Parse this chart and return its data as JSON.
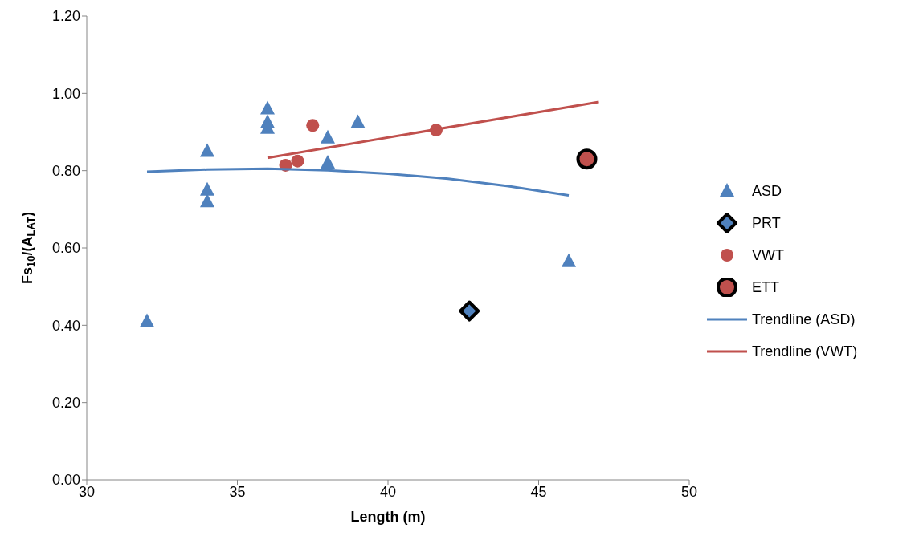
{
  "chart_data": {
    "type": "scatter",
    "xlabel": "Length (m)",
    "ylabel": "Fs$_{10}$/(A$_{LAT}$)",
    "xlim": [
      30,
      50
    ],
    "xticks": [
      30,
      35,
      40,
      45,
      50
    ],
    "ylim": [
      0,
      1.2
    ],
    "yticks": [
      {
        "value": 0,
        "label": "0.00"
      },
      {
        "value": 0.2,
        "label": "0.20"
      },
      {
        "value": 0.4,
        "label": "0.40"
      },
      {
        "value": 0.6,
        "label": "0.60"
      },
      {
        "value": 0.8,
        "label": "0.80"
      },
      {
        "value": 1.0,
        "label": "1.00"
      },
      {
        "value": 1.2,
        "label": "1.20"
      }
    ],
    "grid": false,
    "legend": "right",
    "series": [
      {
        "name": "ASD",
        "type": "scatter",
        "marker": "triangle",
        "color": "#4f81bd",
        "x": [
          32,
          34,
          34,
          34,
          36,
          36,
          36,
          38,
          38,
          39,
          46
        ],
        "values": [
          0.41,
          0.85,
          0.75,
          0.72,
          0.96,
          0.925,
          0.91,
          0.885,
          0.82,
          0.925,
          0.565
        ]
      },
      {
        "name": "PRT",
        "type": "scatter",
        "marker": "diamond",
        "color": "#4f81bd",
        "x": [
          42.7
        ],
        "values": [
          0.437
        ]
      },
      {
        "name": "VWT",
        "type": "scatter",
        "marker": "circle",
        "color": "#c0504d",
        "x": [
          36.6,
          37,
          37.5,
          41.6
        ],
        "values": [
          0.814,
          0.825,
          0.917,
          0.905
        ]
      },
      {
        "name": "ETT",
        "type": "scatter",
        "marker": "circle",
        "color": "#c0504d",
        "x": [
          46.6
        ],
        "values": [
          0.83
        ]
      },
      {
        "name": "Trendline (ASD)",
        "type": "line",
        "marker": "none",
        "color": "#4f81bd",
        "x": [
          32,
          34,
          36,
          38,
          40,
          42,
          44,
          46
        ],
        "values": [
          0.797,
          0.803,
          0.805,
          0.801,
          0.792,
          0.779,
          0.76,
          0.736
        ]
      },
      {
        "name": "Trendline (VWT)",
        "type": "line",
        "marker": "none",
        "color": "#c0504d",
        "x": [
          36,
          47
        ],
        "values": [
          0.833,
          0.978
        ]
      }
    ]
  }
}
